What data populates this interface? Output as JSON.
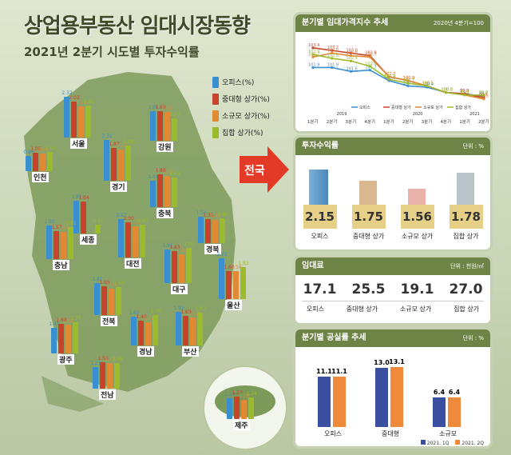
{
  "title": "상업용부동산 임대시장동향",
  "subtitle": "2021년 2분기 시도별 투자수익률",
  "legend": [
    "오피스(%)",
    "중대형 상가(%)",
    "소규모 상가(%)",
    "집합 상가(%)"
  ],
  "colors": {
    "office": "#3a8fd1",
    "large": "#c8432b",
    "small": "#e08a35",
    "collective": "#9cbb2c"
  },
  "center_arrow": "전국",
  "regions": [
    {
      "name": "인천",
      "values": [
        "0.86",
        "1.05",
        "0.98",
        "1.10"
      ]
    },
    {
      "name": "서울",
      "values": [
        "2.32",
        "2.03",
        "1.76",
        "1.80"
      ]
    },
    {
      "name": "경기",
      "values": [
        "2.31",
        "1.87",
        "1.76",
        "1.98"
      ]
    },
    {
      "name": "강원",
      "values": [
        "1.66",
        "1.69",
        "1.63",
        "1.27"
      ]
    },
    {
      "name": "충북",
      "values": [
        "1.48",
        "1.88",
        "1.76",
        "1.69"
      ]
    },
    {
      "name": "세종",
      "values": [
        "1.85",
        "1.84",
        "",
        "0.51"
      ]
    },
    {
      "name": "충남",
      "values": [
        "1.91",
        "1.57",
        "1.54",
        "1.81"
      ]
    },
    {
      "name": "대전",
      "values": [
        "2.17",
        "2.00",
        "1.77",
        "1.87"
      ]
    },
    {
      "name": "경북",
      "values": [
        "1.51",
        "1.35",
        "1.31",
        "1.40"
      ]
    },
    {
      "name": "대구",
      "values": [
        "1.91",
        "1.83",
        "1.65",
        "2.02"
      ]
    },
    {
      "name": "전북",
      "values": [
        "1.81",
        "1.65",
        "1.51",
        "1.60"
      ]
    },
    {
      "name": "울산",
      "values": [
        "2.31",
        "1.60",
        "1.58",
        "1.82"
      ]
    },
    {
      "name": "광주",
      "values": [
        "1.45",
        "1.68",
        "1.62",
        "1.77"
      ]
    },
    {
      "name": "경남",
      "values": [
        "1.62",
        "1.40",
        "1.32",
        "1.75"
      ]
    },
    {
      "name": "부산",
      "values": [
        "1.91",
        "1.69",
        "1.59",
        "1.87"
      ]
    },
    {
      "name": "전남",
      "values": [
        "1.21",
        "1.50",
        "1.45",
        "1.46"
      ]
    },
    {
      "name": "제주",
      "values": [
        "1.20",
        "1.27",
        "1.08",
        "1.24"
      ]
    }
  ],
  "index_panel": {
    "title": "분기별 임대가격지수 추세",
    "note": "2020년 4분기=100",
    "x_ticks": [
      "1분기",
      "2분기",
      "3분기",
      "4분기",
      "1분기",
      "2분기",
      "3분기",
      "4분기",
      "1분기",
      "2분기"
    ],
    "years": [
      "2019",
      "2020",
      "2021"
    ],
    "legend": [
      "오피스",
      "중대형 상가",
      "소규모 상가",
      "집합 상가"
    ]
  },
  "chart_data": [
    {
      "type": "line",
      "title": "분기별 임대가격지수 추세",
      "x": [
        "2019 1분기",
        "2019 2분기",
        "2019 3분기",
        "2019 4분기",
        "2020 1분기",
        "2020 2분기",
        "2020 3분기",
        "2020 4분기",
        "2021 1분기",
        "2021 2분기"
      ],
      "series": [
        {
          "name": "오피스",
          "values": [
            101.9,
            101.9,
            101.6,
            101.7,
            100.9,
            100.5,
            100.4,
            100.0,
            99.9,
            99.7
          ]
        },
        {
          "name": "중대형 상가",
          "values": [
            103.4,
            103.2,
            103.0,
            102.8,
            101.2,
            100.9,
            100.5,
            100.0,
            99.9,
            99.6
          ]
        },
        {
          "name": "소규모 상가",
          "values": [
            102.7,
            103.0,
            102.8,
            102.7,
            101.2,
            100.9,
            100.5,
            100.0,
            99.8,
            99.5
          ]
        },
        {
          "name": "집합 상가",
          "values": [
            102.9,
            102.6,
            102.4,
            102.0,
            101.0,
            100.7,
            100.5,
            100.0,
            99.8,
            99.8
          ]
        }
      ],
      "ylim": [
        99,
        104
      ]
    },
    {
      "type": "bar",
      "title": "분기별 공실률 추세",
      "categories": [
        "오피스",
        "중대형",
        "소규모"
      ],
      "series": [
        {
          "name": "2021.1Q",
          "values": [
            11.1,
            13.0,
            6.4
          ]
        },
        {
          "name": "2021.2Q",
          "values": [
            11.1,
            13.1,
            6.4
          ]
        }
      ],
      "ylim": [
        0,
        14
      ]
    }
  ],
  "returns_panel": {
    "title": "투자수익률",
    "unit": "단위 : %",
    "items": [
      {
        "label": "오피스",
        "value": "2.15"
      },
      {
        "label": "중대형 상가",
        "value": "1.75"
      },
      {
        "label": "소규모 상가",
        "value": "1.56"
      },
      {
        "label": "집합 상가",
        "value": "1.78"
      }
    ]
  },
  "rent_panel": {
    "title": "임대료",
    "unit": "단위 : 천원/㎡",
    "items": [
      {
        "label": "오피스",
        "value": "17.1"
      },
      {
        "label": "중대형 상가",
        "value": "25.5"
      },
      {
        "label": "소규모 상가",
        "value": "19.1"
      },
      {
        "label": "집합 상가",
        "value": "27.0"
      }
    ]
  },
  "vacancy_panel": {
    "title": "분기별 공실률 추세",
    "unit": "단위 : %",
    "labels": [
      "오피스",
      "중대형",
      "소규모"
    ],
    "legend": [
      "2021. 1Q",
      "2021. 2Q"
    ],
    "values": [
      [
        "11.1",
        "11.1"
      ],
      [
        "13.0",
        "13.1"
      ],
      [
        "6.4",
        "6.4"
      ]
    ]
  }
}
